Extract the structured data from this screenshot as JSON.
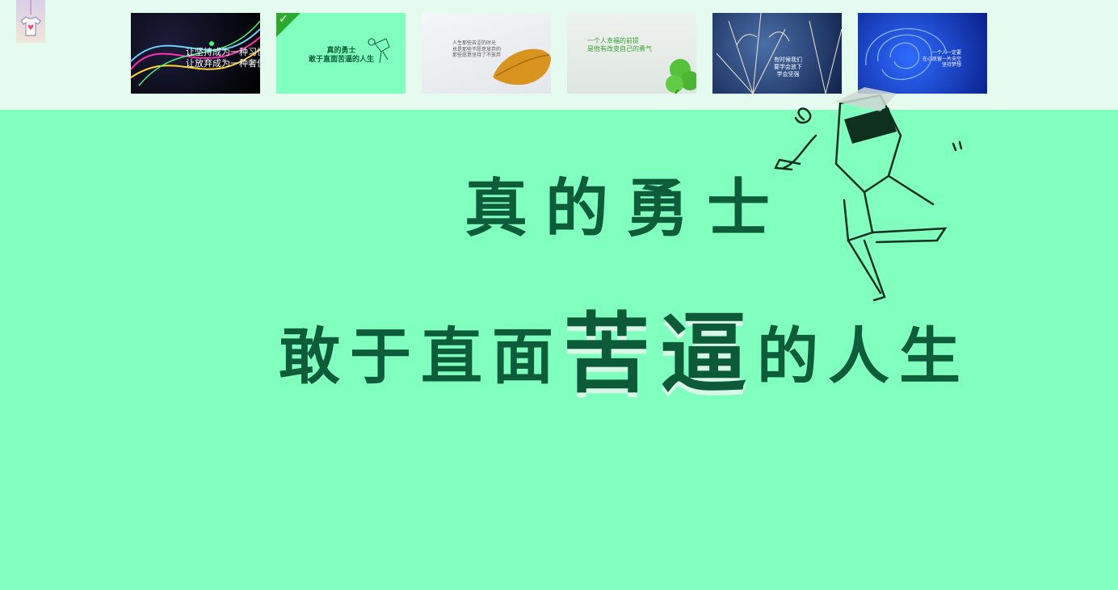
{
  "slides": [
    {
      "id": 1,
      "text": "让坚持成为一种习惯\n让放弃成为一种奢侈",
      "selected": false
    },
    {
      "id": 2,
      "text": "真的勇士\n敢于直面苦逼的人生",
      "selected": true
    },
    {
      "id": 3,
      "text": "人生那些苦涩的时光\n总是那些不愿意放弃的\n那些愿意坚持了不放弃",
      "selected": false
    },
    {
      "id": 4,
      "text": "一个人幸福的前提\n是他有改变自己的勇气",
      "selected": false
    },
    {
      "id": 5,
      "text": "有时候我们\n要学会放下\n学会坚强",
      "selected": false
    },
    {
      "id": 6,
      "text": "一个人一定要\n在心底留一片天空\n坚持梦想",
      "selected": false
    }
  ],
  "main": {
    "line1": "真的勇士",
    "line2_a": "敢于直面",
    "line2_b": "苦逼",
    "line2_c": "的人生"
  },
  "colors": {
    "background": "#80ffbf",
    "text": "#0f5c3a",
    "topbar": "#e6fbef",
    "check": "#2fa82f"
  },
  "icons": {
    "theme": "tshirt-heart-icon",
    "selected": "check-icon"
  }
}
